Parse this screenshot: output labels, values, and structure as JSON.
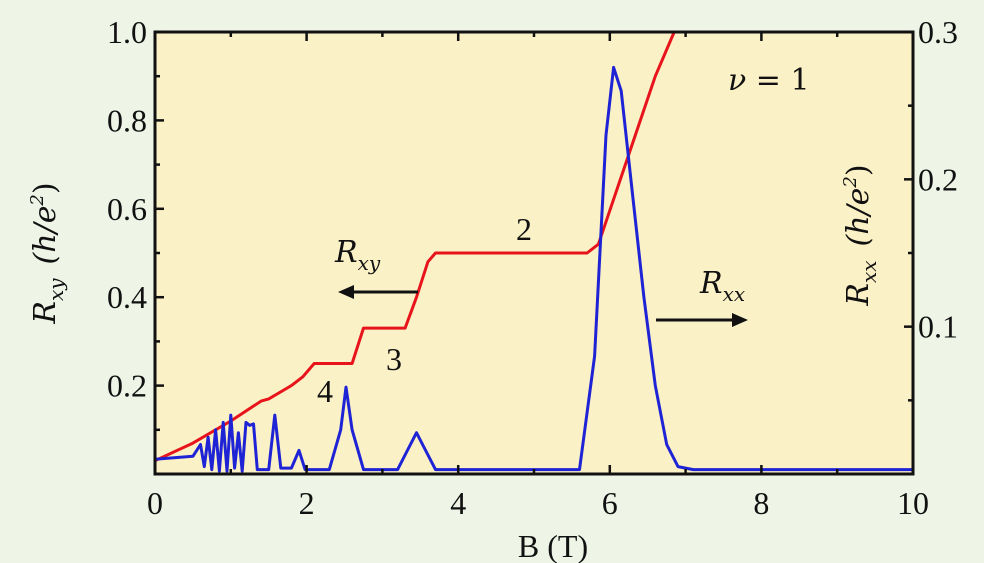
{
  "chart_data": {
    "type": "line",
    "xlabel": "B (T)",
    "xlim": [
      0,
      10
    ],
    "x_ticks": [
      "0",
      "2",
      "4",
      "6",
      "8",
      "10"
    ],
    "left_axis": {
      "label_symbol": "R",
      "label_sub": "xy",
      "label_units": "(h/e",
      "label_sup": "2",
      "label_close": ")",
      "ylim": [
        0,
        1.0
      ],
      "ticks": [
        "0.2",
        "0.4",
        "0.6",
        "0.8",
        "1.0"
      ]
    },
    "right_axis": {
      "label_symbol": "R",
      "label_sub": "xx",
      "label_units": "(h/e",
      "label_sup": "2",
      "label_close": ")",
      "ylim": [
        0,
        0.3
      ],
      "ticks": [
        "0.1",
        "0.2",
        "0.3"
      ]
    },
    "grid": false,
    "background_color": "#fbf1c6",
    "series": [
      {
        "id": "rxy",
        "axis": "left",
        "color": "#e8141b",
        "x": [
          0,
          0.5,
          1.0,
          1.4,
          1.5,
          1.7,
          1.8,
          1.95,
          2.1,
          2.6,
          2.75,
          3.3,
          3.45,
          3.6,
          3.7,
          5.7,
          5.85,
          6.6,
          6.85,
          10.0
        ],
        "y": [
          0.03,
          0.07,
          0.12,
          0.165,
          0.17,
          0.19,
          0.2,
          0.22,
          0.25,
          0.25,
          0.33,
          0.33,
          0.4,
          0.48,
          0.5,
          0.5,
          0.52,
          0.9,
          1.0,
          1.0
        ]
      },
      {
        "id": "rxx",
        "axis": "right",
        "color": "#1f23d6",
        "x": [
          0,
          0.5,
          0.6,
          0.65,
          0.7,
          0.75,
          0.8,
          0.85,
          0.9,
          0.95,
          1.0,
          1.05,
          1.1,
          1.15,
          1.2,
          1.25,
          1.3,
          1.35,
          1.5,
          1.58,
          1.66,
          1.8,
          1.9,
          1.98,
          2.3,
          2.45,
          2.52,
          2.6,
          2.75,
          3.2,
          3.35,
          3.45,
          3.55,
          3.7,
          5.6,
          5.8,
          5.95,
          6.05,
          6.15,
          6.3,
          6.45,
          6.6,
          6.75,
          6.9,
          7.1,
          10.0
        ],
        "y": [
          0.01,
          0.012,
          0.02,
          0.005,
          0.025,
          0.003,
          0.03,
          0.002,
          0.035,
          0.002,
          0.04,
          0.004,
          0.028,
          0.002,
          0.035,
          0.033,
          0.034,
          0.003,
          0.003,
          0.04,
          0.004,
          0.004,
          0.016,
          0.003,
          0.003,
          0.03,
          0.059,
          0.03,
          0.003,
          0.003,
          0.018,
          0.028,
          0.018,
          0.003,
          0.003,
          0.08,
          0.23,
          0.276,
          0.26,
          0.19,
          0.12,
          0.06,
          0.02,
          0.005,
          0.003,
          0.003
        ]
      }
    ],
    "annotations": {
      "nu_label_symbol": "ν",
      "nu_label_rest": " = 1",
      "plateau_labels": [
        "2",
        "3",
        "4"
      ]
    }
  }
}
